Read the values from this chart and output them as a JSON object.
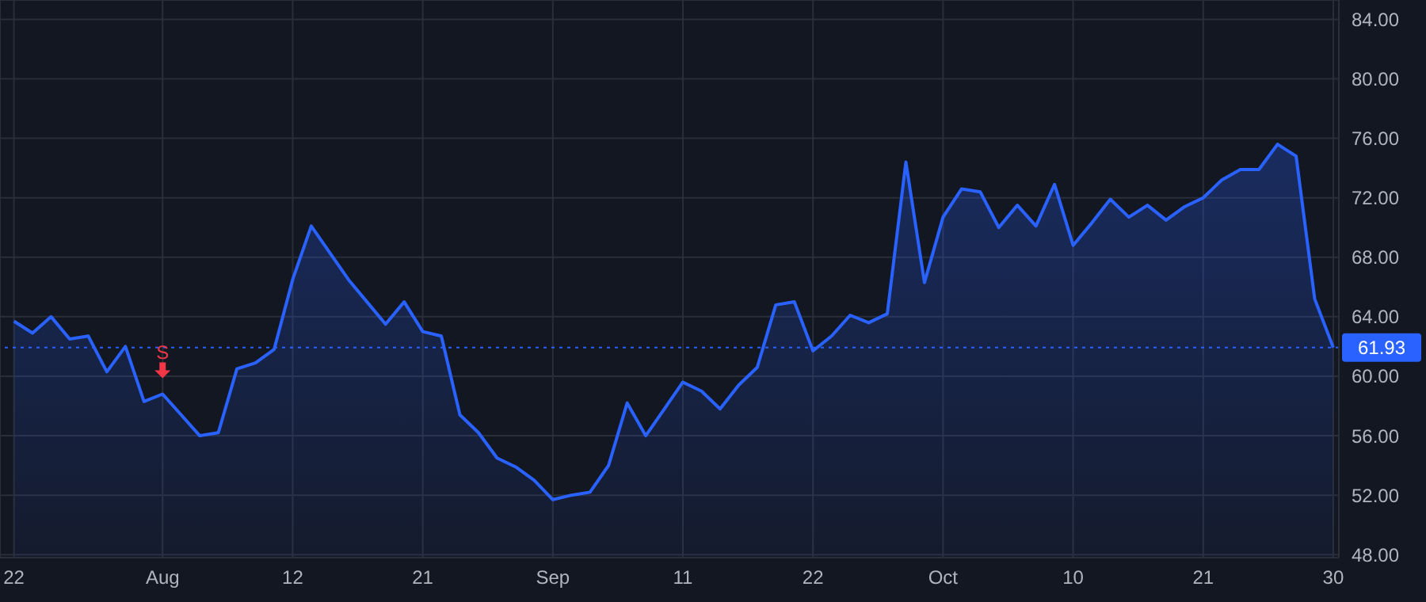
{
  "chart_data": {
    "type": "area",
    "categories": [
      "22",
      null,
      null,
      null,
      null,
      null,
      null,
      null,
      "Aug",
      null,
      null,
      null,
      null,
      null,
      null,
      "12",
      null,
      null,
      null,
      null,
      null,
      null,
      "21",
      null,
      null,
      null,
      null,
      null,
      null,
      "Sep",
      null,
      null,
      null,
      null,
      null,
      null,
      "11",
      null,
      null,
      null,
      null,
      null,
      null,
      "22",
      null,
      null,
      null,
      null,
      null,
      null,
      "Oct",
      null,
      null,
      null,
      null,
      null,
      null,
      "10",
      null,
      null,
      null,
      null,
      null,
      null,
      "21",
      null,
      null,
      null,
      null,
      null,
      null,
      "30"
    ],
    "series": [
      {
        "color": "#2962ff",
        "values": [
          63.7,
          62.9,
          64.0,
          62.5,
          62.7,
          60.3,
          62.0,
          58.3,
          58.8,
          57.4,
          56.0,
          56.2,
          60.5,
          60.9,
          61.8,
          66.5,
          70.1,
          68.3,
          66.5,
          65.0,
          63.5,
          65.0,
          63.0,
          62.7,
          57.4,
          56.2,
          54.5,
          53.9,
          53.0,
          51.7,
          52.0,
          52.2,
          54.0,
          58.2,
          56.0,
          57.8,
          59.6,
          59.0,
          57.8,
          59.4,
          60.6,
          64.8,
          65.0,
          61.7,
          62.7,
          64.1,
          63.6,
          64.2,
          74.4,
          66.3,
          70.7,
          72.6,
          72.4,
          70.0,
          71.5,
          70.1,
          72.9,
          68.8,
          70.3,
          71.9,
          70.7,
          71.5,
          70.5,
          71.4,
          72.0,
          73.2,
          73.9,
          73.9,
          75.6,
          74.8,
          65.2,
          61.93
        ]
      }
    ],
    "ylim": [
      47.8,
      85.3
    ],
    "yticks": [
      {
        "value": 48,
        "label": "48.00"
      },
      {
        "value": 52,
        "label": "52.00"
      },
      {
        "value": 56,
        "label": "56.00"
      },
      {
        "value": 60,
        "label": "60.00"
      },
      {
        "value": 64,
        "label": "64.00"
      },
      {
        "value": 68,
        "label": "68.00"
      },
      {
        "value": 72,
        "label": "72.00"
      },
      {
        "value": 76,
        "label": "76.00"
      },
      {
        "value": 80,
        "label": "80.00"
      },
      {
        "value": 84,
        "label": "84.00"
      }
    ],
    "grid": true,
    "line_style": "solid",
    "ref_lines": [
      {
        "axis": "y",
        "value": 61.93,
        "label": "61.93",
        "color": "#2962ff",
        "line_style": "dotted"
      }
    ],
    "annotations": [
      {
        "text": "S",
        "x": "Aug",
        "y": 58.8
      }
    ]
  }
}
